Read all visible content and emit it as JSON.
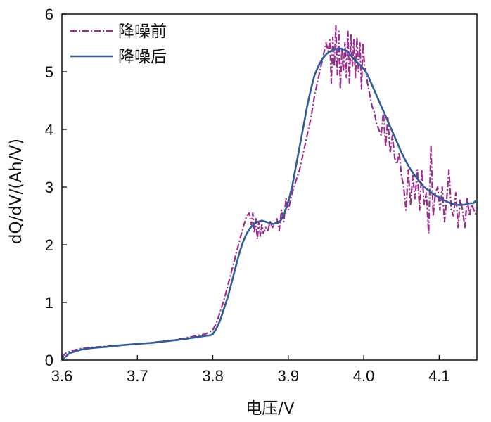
{
  "chart_data": {
    "type": "line",
    "xlabel": "电压/V",
    "ylabel": "dQ/dV/(Ah/V)",
    "xlim": [
      3.6,
      4.15
    ],
    "ylim": [
      0,
      6
    ],
    "xticks": [
      "3.6",
      "3.7",
      "3.8",
      "3.9",
      "4.0",
      "4.1"
    ],
    "yticks": [
      "0",
      "1",
      "2",
      "3",
      "4",
      "5",
      "6"
    ],
    "grid": false,
    "legend_position": "top-left",
    "series": [
      {
        "name": "降噪前",
        "style": "dash-dot",
        "color": "#9b2b8f",
        "x": [
          3.6,
          3.605,
          3.615,
          3.63,
          3.65,
          3.67,
          3.69,
          3.71,
          3.73,
          3.75,
          3.77,
          3.79,
          3.8,
          3.805,
          3.81,
          3.815,
          3.82,
          3.825,
          3.83,
          3.835,
          3.84,
          3.845,
          3.848,
          3.851,
          3.853,
          3.855,
          3.857,
          3.859,
          3.861,
          3.863,
          3.865,
          3.867,
          3.87,
          3.873,
          3.876,
          3.879,
          3.882,
          3.885,
          3.888,
          3.891,
          3.894,
          3.897,
          3.9,
          3.905,
          3.91,
          3.915,
          3.92,
          3.925,
          3.93,
          3.935,
          3.94,
          3.945,
          3.95,
          3.953,
          3.955,
          3.957,
          3.959,
          3.961,
          3.963,
          3.965,
          3.967,
          3.969,
          3.971,
          3.973,
          3.975,
          3.977,
          3.979,
          3.981,
          3.983,
          3.985,
          3.987,
          3.989,
          3.991,
          3.993,
          3.995,
          3.997,
          3.999,
          4.001,
          4.003,
          4.005,
          4.008,
          4.011,
          4.014,
          4.017,
          4.02,
          4.023,
          4.026,
          4.029,
          4.032,
          4.035,
          4.038,
          4.041,
          4.044,
          4.047,
          4.05,
          4.053,
          4.056,
          4.059,
          4.062,
          4.065,
          4.068,
          4.071,
          4.074,
          4.077,
          4.08,
          4.083,
          4.086,
          4.089,
          4.092,
          4.095,
          4.098,
          4.101,
          4.104,
          4.107,
          4.11,
          4.113,
          4.116,
          4.119,
          4.122,
          4.125,
          4.128,
          4.131,
          4.134,
          4.137,
          4.14,
          4.143,
          4.146,
          4.15
        ],
        "values": [
          0.05,
          0.12,
          0.17,
          0.21,
          0.23,
          0.25,
          0.27,
          0.29,
          0.32,
          0.35,
          0.4,
          0.45,
          0.52,
          0.65,
          0.85,
          1.05,
          1.3,
          1.55,
          1.8,
          2.05,
          2.3,
          2.5,
          2.55,
          2.35,
          2.55,
          2.2,
          2.45,
          2.1,
          2.4,
          2.15,
          2.35,
          2.2,
          2.3,
          2.25,
          2.4,
          2.3,
          2.35,
          2.45,
          2.25,
          2.6,
          2.4,
          2.8,
          2.6,
          2.9,
          3.1,
          3.3,
          3.6,
          3.9,
          4.2,
          4.6,
          4.9,
          5.2,
          5.5,
          5.35,
          5.55,
          4.8,
          5.6,
          5.1,
          5.8,
          4.95,
          5.7,
          4.7,
          5.4,
          5.0,
          5.5,
          4.9,
          5.7,
          4.8,
          5.65,
          5.1,
          5.55,
          4.9,
          5.6,
          5.0,
          5.5,
          4.7,
          5.5,
          5.1,
          5.0,
          4.8,
          4.6,
          4.4,
          4.3,
          4.1,
          4.0,
          3.9,
          4.3,
          3.7,
          4.2,
          3.6,
          3.9,
          3.5,
          3.4,
          3.6,
          3.2,
          3.0,
          2.6,
          3.3,
          2.7,
          3.2,
          2.8,
          3.3,
          2.6,
          3.3,
          2.7,
          2.9,
          2.2,
          3.7,
          2.5,
          2.9,
          3.0,
          2.6,
          3.0,
          2.4,
          2.8,
          3.3,
          2.6,
          2.5,
          2.9,
          2.3,
          2.8,
          2.6,
          2.3,
          2.8,
          2.5,
          2.7,
          2.6,
          2.5
        ]
      },
      {
        "name": "降噪后",
        "style": "solid",
        "color": "#2e5d9a",
        "x": [
          3.6,
          3.61,
          3.625,
          3.64,
          3.66,
          3.68,
          3.7,
          3.72,
          3.74,
          3.76,
          3.78,
          3.79,
          3.797,
          3.8,
          3.805,
          3.81,
          3.815,
          3.82,
          3.825,
          3.83,
          3.835,
          3.84,
          3.845,
          3.85,
          3.855,
          3.86,
          3.865,
          3.87,
          3.875,
          3.88,
          3.885,
          3.89,
          3.895,
          3.9,
          3.905,
          3.91,
          3.915,
          3.92,
          3.925,
          3.93,
          3.935,
          3.94,
          3.945,
          3.95,
          3.955,
          3.96,
          3.965,
          3.97,
          3.975,
          3.98,
          3.985,
          3.99,
          3.995,
          4.0,
          4.005,
          4.01,
          4.015,
          4.02,
          4.025,
          4.03,
          4.035,
          4.04,
          4.045,
          4.05,
          4.055,
          4.06,
          4.065,
          4.07,
          4.075,
          4.08,
          4.085,
          4.09,
          4.095,
          4.1,
          4.105,
          4.11,
          4.115,
          4.12,
          4.125,
          4.13,
          4.135,
          4.14,
          4.145,
          4.15
        ],
        "values": [
          0.0,
          0.12,
          0.18,
          0.21,
          0.23,
          0.26,
          0.28,
          0.3,
          0.33,
          0.36,
          0.4,
          0.42,
          0.43,
          0.45,
          0.55,
          0.7,
          0.9,
          1.1,
          1.35,
          1.6,
          1.85,
          2.05,
          2.2,
          2.3,
          2.36,
          2.4,
          2.42,
          2.4,
          2.38,
          2.36,
          2.38,
          2.42,
          2.55,
          2.75,
          3.0,
          3.35,
          3.7,
          4.05,
          4.4,
          4.7,
          4.95,
          5.1,
          5.22,
          5.3,
          5.35,
          5.38,
          5.4,
          5.4,
          5.38,
          5.33,
          5.25,
          5.18,
          5.12,
          5.05,
          4.95,
          4.8,
          4.65,
          4.5,
          4.35,
          4.2,
          4.05,
          3.9,
          3.75,
          3.6,
          3.47,
          3.35,
          3.25,
          3.16,
          3.08,
          3.0,
          2.95,
          2.9,
          2.86,
          2.82,
          2.78,
          2.75,
          2.72,
          2.7,
          2.69,
          2.69,
          2.7,
          2.72,
          2.72,
          2.78
        ]
      }
    ]
  }
}
